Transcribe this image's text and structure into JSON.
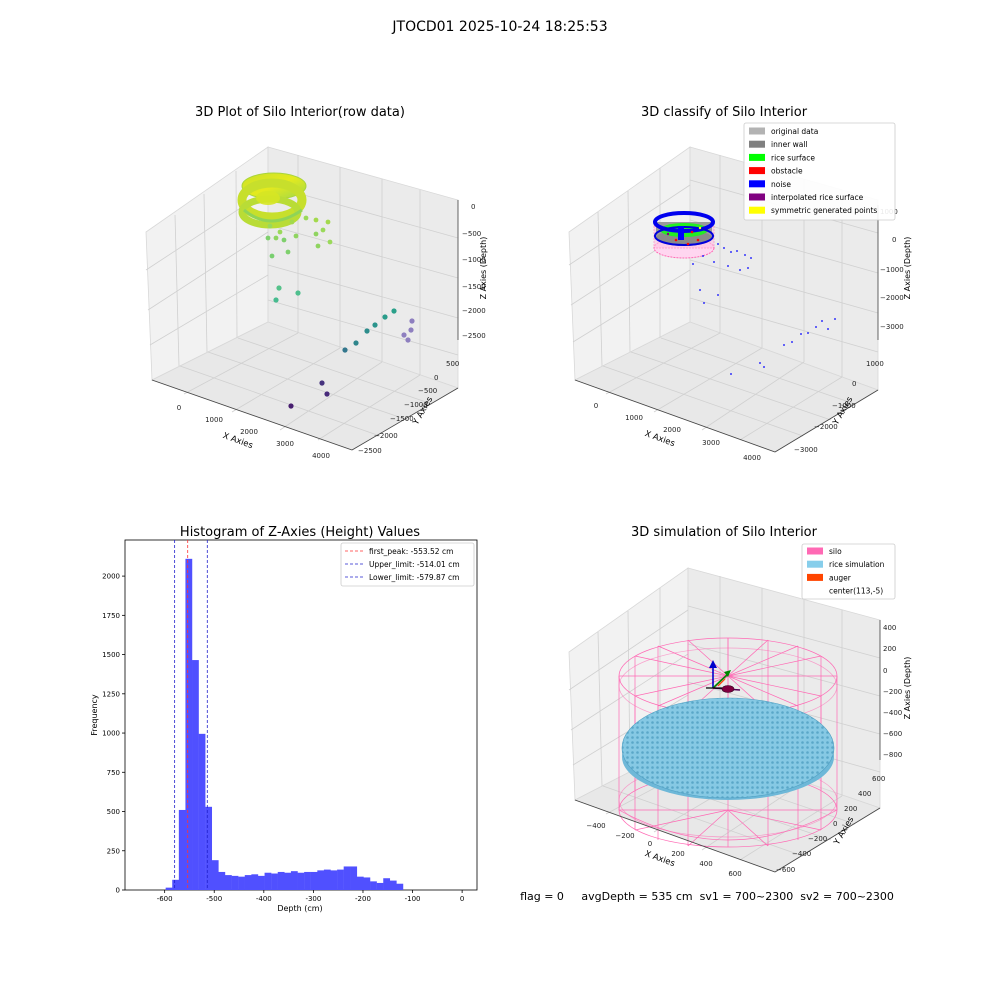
{
  "figure": {
    "suptitle": "JTOCD01 2025-10-24 18:25:53",
    "status_text": "flag = 0     avgDepth = 535 cm  sv1 = 700~2300  sv2 = 700~2300"
  },
  "colors": {
    "histogram_bar": "#5050ff",
    "first_peak": "#ff3333",
    "limit_lines": "#2222cc",
    "silo": "#ff69b4",
    "rice_simulation": "#87ceeb",
    "auger": "#ff4500"
  },
  "chart_data": [
    {
      "type": "scatter3d",
      "title": "3D Plot of Silo Interior(row data)",
      "xlabel": "X Axies",
      "ylabel": "Y Axies",
      "zlabel": "Z Axies (Depth)",
      "x_ticks": [
        "0",
        "1000",
        "2000",
        "3000",
        "4000"
      ],
      "y_ticks": [
        "500",
        "0",
        "−500",
        "−1000",
        "−1500",
        "−2000",
        "−2500"
      ],
      "z_ticks": [
        "0",
        "−500",
        "−1000",
        "−1500",
        "−2000",
        "−2500"
      ],
      "points": [
        {
          "x": 2200,
          "y": -800,
          "z": -1900
        },
        {
          "x": 2500,
          "y": -900,
          "z": -2000
        },
        {
          "x": 2700,
          "y": -1000,
          "z": -2100
        },
        {
          "x": 2950,
          "y": -1100,
          "z": -2150
        },
        {
          "x": 3300,
          "y": -1200,
          "z": -2300
        },
        {
          "x": 3400,
          "y": -1300,
          "z": -2350
        },
        {
          "x": 3600,
          "y": -1400,
          "z": -2500
        },
        {
          "x": 3700,
          "y": -1450,
          "z": -2550
        },
        {
          "x": 3050,
          "y": -1800,
          "z": -2650
        },
        {
          "x": 2600,
          "y": -2100,
          "z": -2700
        },
        {
          "x": 3150,
          "y": -2000,
          "z": -2700
        }
      ]
    },
    {
      "type": "scatter3d",
      "title": "3D classify of Silo Interior",
      "xlabel": "X Axies",
      "ylabel": "Y Axies",
      "zlabel": "Z Axies (Depth)",
      "x_ticks": [
        "0",
        "1000",
        "2000",
        "3000",
        "4000"
      ],
      "y_ticks": [
        "1000",
        "0",
        "−1000",
        "−2000",
        "−3000"
      ],
      "z_ticks": [
        "1000",
        "0",
        "−1000",
        "−2000",
        "−3000"
      ],
      "legend": [
        "original data",
        "inner wall",
        "rice surface",
        "obstacle",
        "noise",
        "interpolated rice surface",
        "symmetric generated points"
      ],
      "legend_colors": [
        "#b3b3b3",
        "#808080",
        "#00ff00",
        "#ff0000",
        "#0000ff",
        "#800080",
        "#ffff00"
      ]
    },
    {
      "type": "bar",
      "title": "Histogram of Z-Axies (Height) Values",
      "xlabel": "Depth (cm)",
      "ylabel": "Frequency",
      "xlim": [
        -680,
        30
      ],
      "ylim": [
        0,
        2230
      ],
      "x_ticks": [
        -600,
        -500,
        -400,
        -300,
        -200,
        -100,
        0
      ],
      "y_ticks": [
        0,
        250,
        500,
        750,
        1000,
        1250,
        1500,
        1750,
        2000
      ],
      "bin_width": 13.3,
      "bin_start": -598,
      "values": [
        15,
        65,
        510,
        2110,
        1465,
        995,
        530,
        190,
        115,
        95,
        90,
        85,
        95,
        100,
        90,
        110,
        105,
        115,
        110,
        120,
        110,
        115,
        115,
        125,
        130,
        125,
        130,
        150,
        150,
        85,
        80,
        55,
        45,
        75,
        60,
        40
      ],
      "lines": [
        {
          "label": "first_peak: -553.52 cm",
          "x": -553.52,
          "color": "#ff3333"
        },
        {
          "label": "Upper_limit: -514.01 cm",
          "x": -514.01,
          "color": "#2222cc"
        },
        {
          "label": "Lower_limit: -579.87 cm",
          "x": -579.87,
          "color": "#2222cc"
        }
      ]
    },
    {
      "type": "surface3d",
      "title": "3D simulation of Silo Interior",
      "xlabel": "X Axies",
      "ylabel": "Y Axies",
      "zlabel": "Z Axies (Depth)",
      "x_ticks": [
        "−400",
        "−200",
        "0",
        "200",
        "400",
        "600"
      ],
      "y_ticks": [
        "600",
        "400",
        "200",
        "0",
        "−200",
        "−400",
        "−600"
      ],
      "z_ticks": [
        "400",
        "200",
        "0",
        "−200",
        "−400",
        "−600",
        "−800"
      ],
      "legend": [
        "silo",
        "rice simulation",
        "auger",
        "center(113,-5)"
      ],
      "legend_colors": [
        "#ff69b4",
        "#87ceeb",
        "#ff4500",
        ""
      ]
    }
  ]
}
